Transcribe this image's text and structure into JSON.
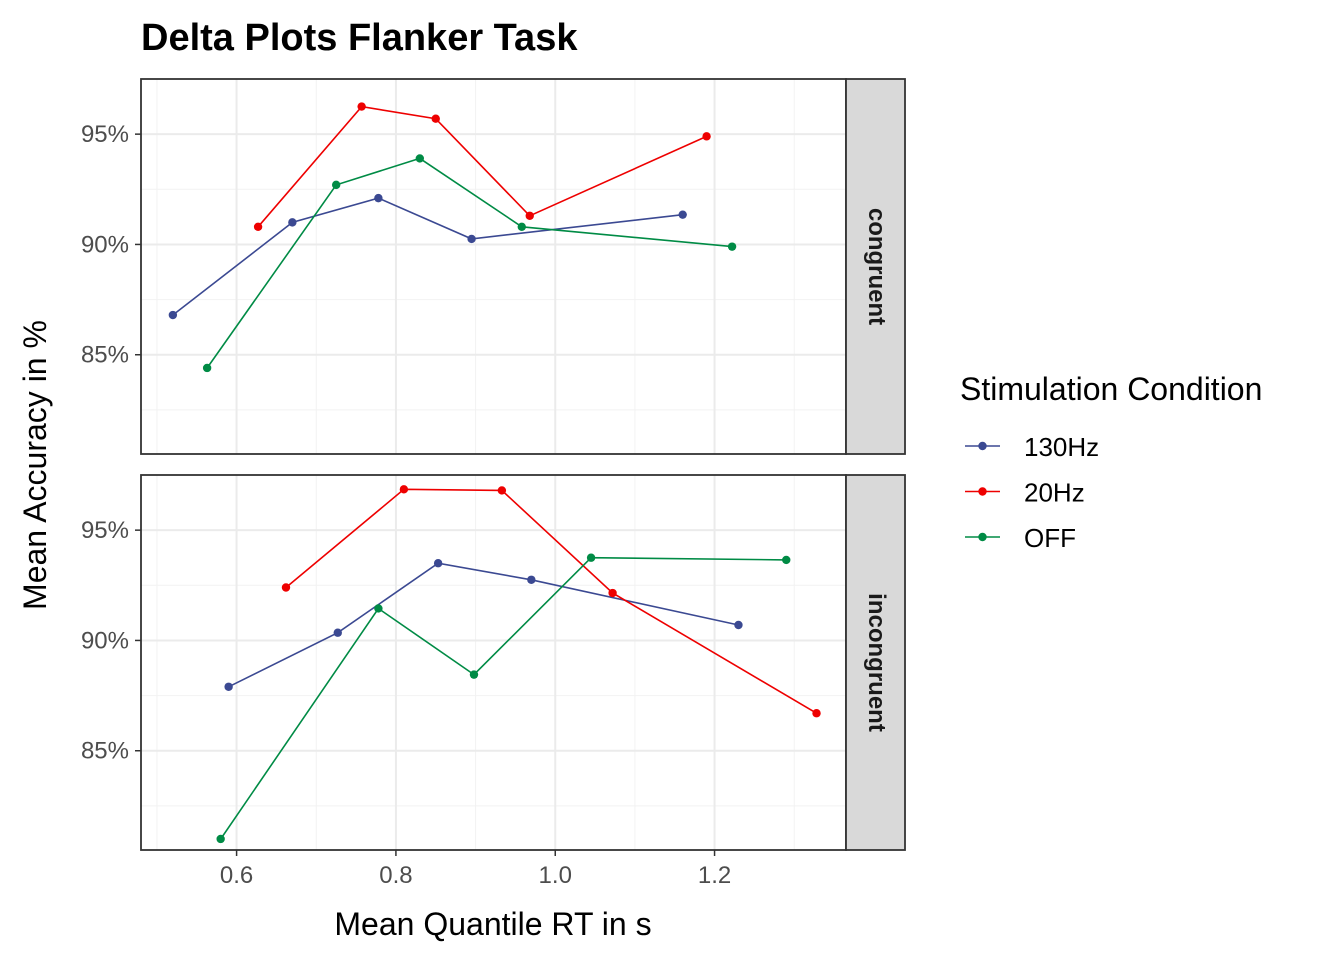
{
  "chart_data": {
    "type": "line",
    "title": "Delta Plots Flanker Task",
    "xlabel": "Mean Quantile RT in s",
    "ylabel": "Mean Accuracy in %",
    "xlim": [
      0.48,
      1.365
    ],
    "ylim": [
      80.5,
      97.5
    ],
    "x_ticks": [
      0.6,
      0.8,
      1.0,
      1.2
    ],
    "x_tick_labels": [
      "0.6",
      "0.8",
      "1.0",
      "1.2"
    ],
    "y_ticks": [
      85,
      90,
      95
    ],
    "y_tick_labels": [
      "85%",
      "90%",
      "95%"
    ],
    "grid": true,
    "legend": {
      "title": "Stimulation Condition",
      "position": "right"
    },
    "series_colors": {
      "130Hz": "#3B4992",
      "20Hz": "#EE0000",
      "OFF": "#008B45"
    },
    "panels": [
      {
        "label": "congruent",
        "series": [
          {
            "name": "130Hz",
            "x": [
              0.52,
              0.67,
              0.778,
              0.895,
              1.16
            ],
            "y": [
              86.8,
              91.0,
              92.1,
              90.25,
              91.35
            ]
          },
          {
            "name": "20Hz",
            "x": [
              0.627,
              0.757,
              0.85,
              0.968,
              1.19
            ],
            "y": [
              90.8,
              96.25,
              95.7,
              91.3,
              94.9
            ]
          },
          {
            "name": "OFF",
            "x": [
              0.563,
              0.725,
              0.83,
              0.958,
              1.222
            ],
            "y": [
              84.4,
              92.7,
              93.9,
              90.8,
              89.9
            ]
          }
        ]
      },
      {
        "label": "incongruent",
        "series": [
          {
            "name": "130Hz",
            "x": [
              0.59,
              0.727,
              0.853,
              0.97,
              1.23
            ],
            "y": [
              87.9,
              90.35,
              93.5,
              92.75,
              90.7
            ]
          },
          {
            "name": "20Hz",
            "x": [
              0.662,
              0.81,
              0.933,
              1.072,
              1.328
            ],
            "y": [
              92.4,
              96.85,
              96.8,
              92.15,
              86.7
            ]
          },
          {
            "name": "OFF",
            "x": [
              0.58,
              0.778,
              0.898,
              1.045,
              1.29
            ],
            "y": [
              81.0,
              91.45,
              88.45,
              93.75,
              93.65
            ]
          }
        ]
      }
    ]
  }
}
